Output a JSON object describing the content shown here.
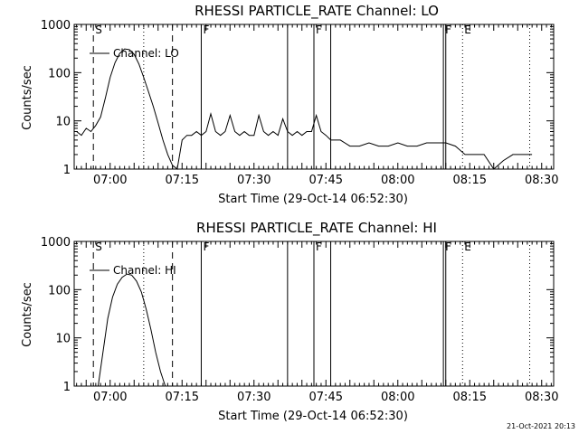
{
  "footer": {
    "timestamp": "21-Oct-2021 20:13"
  },
  "chart_data": [
    {
      "type": "line",
      "title": "RHESSI PARTICLE_RATE Channel: LO",
      "xlabel": "Start Time (29-Oct-14 06:52:30)",
      "ylabel": "Counts/sec",
      "y_scale": "log",
      "xlim": [
        "06:52:30",
        "08:32:30"
      ],
      "ylim": [
        1,
        1000
      ],
      "x_ticks": [
        "07:00",
        "07:15",
        "07:30",
        "07:45",
        "08:00",
        "08:15",
        "08:30"
      ],
      "y_ticks": [
        "1",
        "10",
        "100",
        "1000"
      ],
      "legend": {
        "label": "Channel: LO",
        "placement": "top-left"
      },
      "markers": [
        {
          "time": "06:56:30",
          "style": "dashed",
          "label": "S"
        },
        {
          "time": "07:07:00",
          "style": "dotted",
          "label": ""
        },
        {
          "time": "07:13:00",
          "style": "dashed",
          "label": ""
        },
        {
          "time": "07:19:00",
          "style": "solid",
          "label": "F"
        },
        {
          "time": "07:37:00",
          "style": "solid",
          "label": ""
        },
        {
          "time": "07:42:30",
          "style": "solid",
          "label": "F"
        },
        {
          "time": "07:46:00",
          "style": "solid",
          "label": ""
        },
        {
          "time": "08:09:30",
          "style": "solid",
          "label": "F"
        },
        {
          "time": "08:10:00",
          "style": "solid",
          "label": ""
        },
        {
          "time": "08:13:30",
          "style": "dotted",
          "label": "E"
        },
        {
          "time": "08:27:30",
          "style": "dotted",
          "label": ""
        }
      ],
      "series": [
        {
          "name": "Channel: LO",
          "x": [
            "06:53:00",
            "06:54:00",
            "06:55:00",
            "06:56:00",
            "06:57:00",
            "06:58:00",
            "06:59:00",
            "07:00:00",
            "07:01:00",
            "07:02:00",
            "07:03:00",
            "07:04:00",
            "07:05:00",
            "07:06:00",
            "07:07:00",
            "07:08:00",
            "07:09:00",
            "07:10:00",
            "07:11:00",
            "07:12:00",
            "07:13:00",
            "07:14:00",
            "07:15:00",
            "07:16:00",
            "07:17:00",
            "07:18:00",
            "07:19:00",
            "07:20:00",
            "07:21:00",
            "07:22:00",
            "07:23:00",
            "07:24:00",
            "07:25:00",
            "07:26:00",
            "07:27:00",
            "07:28:00",
            "07:29:00",
            "07:30:00",
            "07:31:00",
            "07:32:00",
            "07:33:00",
            "07:34:00",
            "07:35:00",
            "07:36:00",
            "07:37:00",
            "07:38:00",
            "07:39:00",
            "07:40:00",
            "07:41:00",
            "07:42:00",
            "07:43:00",
            "07:44:00",
            "07:45:00",
            "07:46:00",
            "07:48:00",
            "07:50:00",
            "07:52:00",
            "07:54:00",
            "07:56:00",
            "07:58:00",
            "08:00:00",
            "08:02:00",
            "08:04:00",
            "08:06:00",
            "08:08:00",
            "08:10:00",
            "08:12:00",
            "08:14:00",
            "08:16:00",
            "08:18:00",
            "08:20:00",
            "08:22:00",
            "08:24:00",
            "08:26:00",
            "08:28:00"
          ],
          "y": [
            6,
            5,
            7,
            6,
            8,
            12,
            30,
            80,
            160,
            250,
            310,
            300,
            240,
            150,
            80,
            40,
            20,
            9,
            4,
            2,
            1.2,
            1,
            4,
            5,
            5,
            6,
            5,
            6,
            14,
            6,
            5,
            6,
            13,
            6,
            5,
            6,
            5,
            5,
            13,
            6,
            5,
            6,
            5,
            11,
            6,
            5,
            6,
            5,
            6,
            6,
            13,
            6,
            5,
            4,
            4,
            3,
            3,
            3.5,
            3,
            3,
            3.5,
            3,
            3,
            3.5,
            3.5,
            3.5,
            3,
            2,
            2,
            2,
            1,
            1.5,
            2,
            2,
            2
          ]
        }
      ]
    },
    {
      "type": "line",
      "title": "RHESSI PARTICLE_RATE Channel: HI",
      "xlabel": "Start Time (29-Oct-14 06:52:30)",
      "ylabel": "Counts/sec",
      "y_scale": "log",
      "xlim": [
        "06:52:30",
        "08:32:30"
      ],
      "ylim": [
        1,
        1000
      ],
      "x_ticks": [
        "07:00",
        "07:15",
        "07:30",
        "07:45",
        "08:00",
        "08:15",
        "08:30"
      ],
      "y_ticks": [
        "1",
        "10",
        "100",
        "1000"
      ],
      "legend": {
        "label": "Channel: HI",
        "placement": "top-left"
      },
      "markers": [
        {
          "time": "06:56:30",
          "style": "dashed",
          "label": "S"
        },
        {
          "time": "07:07:00",
          "style": "dotted",
          "label": ""
        },
        {
          "time": "07:13:00",
          "style": "dashed",
          "label": ""
        },
        {
          "time": "07:19:00",
          "style": "solid",
          "label": "F"
        },
        {
          "time": "07:37:00",
          "style": "solid",
          "label": ""
        },
        {
          "time": "07:42:30",
          "style": "solid",
          "label": "F"
        },
        {
          "time": "07:46:00",
          "style": "solid",
          "label": ""
        },
        {
          "time": "08:09:30",
          "style": "solid",
          "label": "F"
        },
        {
          "time": "08:10:00",
          "style": "solid",
          "label": ""
        },
        {
          "time": "08:13:30",
          "style": "dotted",
          "label": "E"
        },
        {
          "time": "08:27:30",
          "style": "dotted",
          "label": ""
        }
      ],
      "series": [
        {
          "name": "Channel: HI",
          "x": [
            "06:57:30",
            "06:58:30",
            "06:59:30",
            "07:00:30",
            "07:01:30",
            "07:02:30",
            "07:03:30",
            "07:04:30",
            "07:05:30",
            "07:06:30",
            "07:07:30",
            "07:08:30",
            "07:09:30",
            "07:10:30",
            "07:11:30"
          ],
          "y": [
            1,
            5,
            25,
            70,
            130,
            180,
            210,
            200,
            150,
            90,
            40,
            15,
            5,
            2,
            1
          ]
        }
      ]
    }
  ]
}
